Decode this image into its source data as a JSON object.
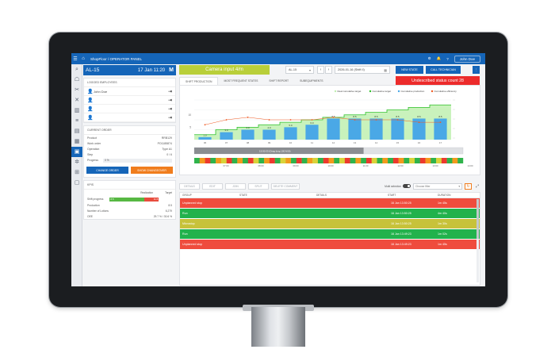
{
  "topbar": {
    "breadcrumb": "ShopFloor / OPERATOR PANEL",
    "user": "John Doe",
    "icons": [
      "menu-icon",
      "home-icon",
      "settings-icon",
      "notification-icon",
      "help-icon"
    ]
  },
  "station": {
    "id": "AL-15",
    "datetime": "17 Jan 11:20",
    "mode": "M"
  },
  "logged_employees": {
    "title": "LOGGED EMPLOYEES",
    "rows": [
      {
        "name": "John Doe"
      },
      {
        "name": ""
      },
      {
        "name": ""
      },
      {
        "name": ""
      }
    ]
  },
  "current_order": {
    "title": "CURRENT ORDER",
    "fields": [
      {
        "label": "Product",
        "value": "RRB129"
      },
      {
        "label": "Work order",
        "value": "PO1185874"
      },
      {
        "label": "Operation",
        "value": "Type A1"
      },
      {
        "label": "Step",
        "value": "0 / 6"
      }
    ],
    "progress_label": "Progress",
    "progress_value": "0 %",
    "buttons": {
      "change_order": "CHANGE ORDER",
      "show_changeover": "SHOW CHANGEOVER"
    }
  },
  "kpi": {
    "title": "KPIS",
    "col_realization": "Realization",
    "col_target": "Target",
    "shift_progress": {
      "label": "Shift progress",
      "realization": "8.5",
      "target": "11.6"
    },
    "production": {
      "label": "Production",
      "value": "8.5"
    },
    "lotions": {
      "label": "Number of Lotions",
      "value": "6,279"
    },
    "oee": {
      "label": "OEE",
      "value": "29.7 % / 30.6 %"
    }
  },
  "main": {
    "camera_input": "Camera input 4/m",
    "line_select": "AL-15",
    "date_select": "2026-01-16 (Shift II)",
    "new_state": "NEW STATE",
    "call_technician": "CALL TECHNICIAN",
    "undescribed": "Undescribed status count 28",
    "tabs": [
      "SHIFT PRODUCTION",
      "MOST FREQUENT STATES",
      "SHIFT REPORT",
      "SUBEQUIPMENTS"
    ]
  },
  "chart_data": {
    "type": "bar",
    "categories": [
      "06",
      "07",
      "08",
      "09",
      "10",
      "11",
      "12",
      "13",
      "14",
      "15",
      "16",
      "17"
    ],
    "series": [
      {
        "name": "Real cumulative target",
        "type": "area",
        "values": [
          2,
          4,
          5,
          6,
          7,
          8,
          9,
          10,
          11,
          12,
          13,
          14
        ]
      },
      {
        "name": "Cumulative target",
        "type": "line",
        "values": [
          2,
          4,
          5,
          6,
          7,
          8,
          9,
          10,
          11,
          12,
          13,
          14
        ]
      },
      {
        "name": "Cumulative production",
        "type": "bar",
        "values": [
          1,
          3,
          4,
          4,
          5,
          6,
          8.5,
          8.5,
          8.5,
          8.5,
          8.5,
          8.5
        ]
      },
      {
        "name": "Cumulative efficiency",
        "type": "line",
        "values": [
          6,
          8,
          9,
          8,
          8,
          8,
          9,
          8,
          8,
          8,
          7,
          7
        ]
      }
    ],
    "data_labels": [
      "1.0",
      "3.0",
      "4.0",
      "4.0",
      "5.0",
      "6.0",
      "8.5",
      "8.5",
      "8.5",
      "8.5",
      "8.5",
      "8.5"
    ],
    "y_tick_labels": [
      "10",
      "5"
    ],
    "ylim": [
      0,
      16
    ],
    "legend_position": "top-right",
    "colors": {
      "area": "#bff0b0",
      "target": "#2ec02a",
      "production": "#4aa8e6",
      "efficiency": "#f05a23"
    },
    "timeline": {
      "label": "15:50:33 (Drag long 100 M.B)",
      "states": [
        "green",
        "orange",
        "red",
        "green",
        "orange",
        "yellow",
        "red",
        "green",
        "orange",
        "green",
        "red",
        "yellow",
        "green",
        "orange",
        "red",
        "green",
        "yellow",
        "orange",
        "green",
        "red",
        "green",
        "orange",
        "yellow",
        "green",
        "red",
        "orange",
        "green",
        "yellow",
        "red",
        "green",
        "orange",
        "green",
        "red",
        "yellow",
        "green",
        "orange",
        "green",
        "red",
        "orange",
        "green",
        "yellow",
        "green",
        "red",
        "orange",
        "green",
        "yellow",
        "red",
        "green",
        "orange",
        "green"
      ],
      "tick_labels": [
        "07:00",
        "08:00",
        "09:00",
        "10:00",
        "11:00",
        "12:00",
        "13:00",
        "14:00"
      ]
    }
  },
  "toolbar": {
    "buttons": [
      "DETAILS",
      "EDIT",
      "JOIN",
      "SPLIT",
      "DELETE COMMENT"
    ],
    "multi_selection": "Multi selection",
    "filter_placeholder": "Choose filter"
  },
  "state_table": {
    "columns": [
      "GROUP",
      "STATE",
      "DETAILS",
      "START",
      "DURATION"
    ],
    "rows": [
      {
        "group": "Unplanned stop",
        "state": "",
        "details": "",
        "start": "16 Jan 13:50:25",
        "duration": "1m 45s",
        "color": "#ef4c3d"
      },
      {
        "group": "Run",
        "state": "",
        "details": "",
        "start": "16 Jan 13:50:25",
        "duration": "4m 40s",
        "color": "#22b24c"
      },
      {
        "group": "Microstop",
        "state": "",
        "details": "",
        "start": "16 Jan 13:50:25",
        "duration": "1m 30s",
        "color": "#c7c23a"
      },
      {
        "group": "Run",
        "state": "",
        "details": "",
        "start": "16 Jan 13:49:23",
        "duration": "1m 02s",
        "color": "#22b24c"
      },
      {
        "group": "Unplanned stop",
        "state": "",
        "details": "",
        "start": "16 Jan 13:49:23",
        "duration": "1m 45s",
        "color": "#ef4c3d"
      }
    ]
  }
}
